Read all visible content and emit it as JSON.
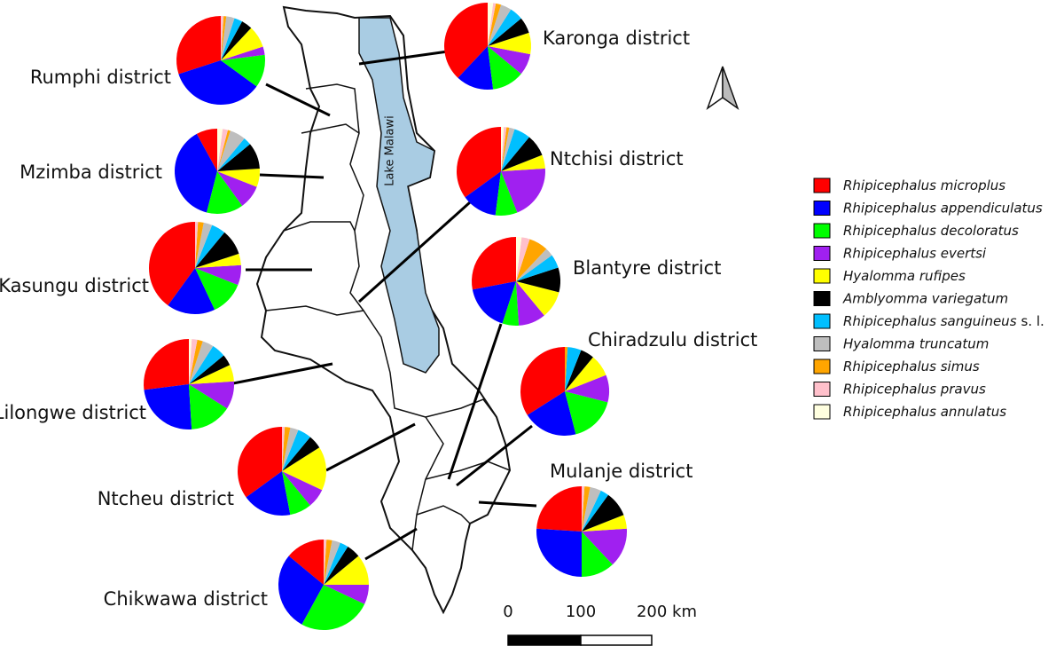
{
  "map": {
    "lake_label": "Lake Malawi",
    "scale_labels": [
      "0",
      "100",
      "200 km"
    ],
    "legend": [
      {
        "name": "Rhipicephalus microplus",
        "color": "#ff0000"
      },
      {
        "name": "Rhipicephalus appendiculatus",
        "color": "#0000ff"
      },
      {
        "name": "Rhipicephalus decoloratus",
        "color": "#00ff00"
      },
      {
        "name": "Rhipicephalus evertsi",
        "color": "#a020f0"
      },
      {
        "name": "Hyalomma rufipes",
        "color": "#ffff00"
      },
      {
        "name": "Amblyomma variegatum",
        "color": "#000000"
      },
      {
        "name": "Rhipicephalus sanguineus",
        "qualifier": "s. l.",
        "color": "#00bfff"
      },
      {
        "name": "Hyalomma truncatum",
        "color": "#bebebe"
      },
      {
        "name": "Rhipicephalus simus",
        "color": "#ffa500"
      },
      {
        "name": "Rhipicephalus pravus",
        "color": "#ffc0cb"
      },
      {
        "name": "Rhipicephalus annulatus",
        "color": "#ffffe0"
      }
    ],
    "districts": [
      {
        "name": "Rumphi district",
        "values": [
          30,
          35,
          12,
          3,
          8,
          4,
          3,
          3,
          1,
          1,
          0
        ]
      },
      {
        "name": "Karonga district",
        "values": [
          38,
          14,
          12,
          8,
          8,
          6,
          5,
          4,
          2,
          1,
          2
        ]
      },
      {
        "name": "Mzimba district",
        "values": [
          8,
          38,
          14,
          9,
          7,
          10,
          3,
          6,
          1,
          2,
          2
        ]
      },
      {
        "name": "Ntchisi district",
        "values": [
          35,
          13,
          8,
          20,
          5,
          8,
          6,
          2,
          1,
          1,
          1
        ]
      },
      {
        "name": "Kasungu district",
        "values": [
          40,
          17,
          12,
          7,
          4,
          9,
          5,
          3,
          2,
          1,
          0
        ]
      },
      {
        "name": "Blantyre district",
        "values": [
          28,
          17,
          6,
          10,
          10,
          9,
          5,
          3,
          7,
          3,
          2
        ]
      },
      {
        "name": "Lilongwe district",
        "values": [
          27,
          24,
          15,
          10,
          6,
          4,
          5,
          4,
          2,
          2,
          1
        ]
      },
      {
        "name": "Chiradzulu district",
        "values": [
          34,
          20,
          17,
          10,
          8,
          5,
          5,
          0,
          1,
          0,
          0
        ]
      },
      {
        "name": "Ntcheu district",
        "values": [
          35,
          18,
          8,
          7,
          16,
          5,
          5,
          3,
          2,
          1,
          0
        ]
      },
      {
        "name": "Mulanje district",
        "values": [
          24,
          26,
          12,
          14,
          5,
          9,
          3,
          4,
          2,
          1,
          0
        ]
      },
      {
        "name": "Chikwawa district",
        "values": [
          14,
          28,
          26,
          7,
          11,
          5,
          3,
          3,
          2,
          1,
          0
        ]
      }
    ]
  }
}
